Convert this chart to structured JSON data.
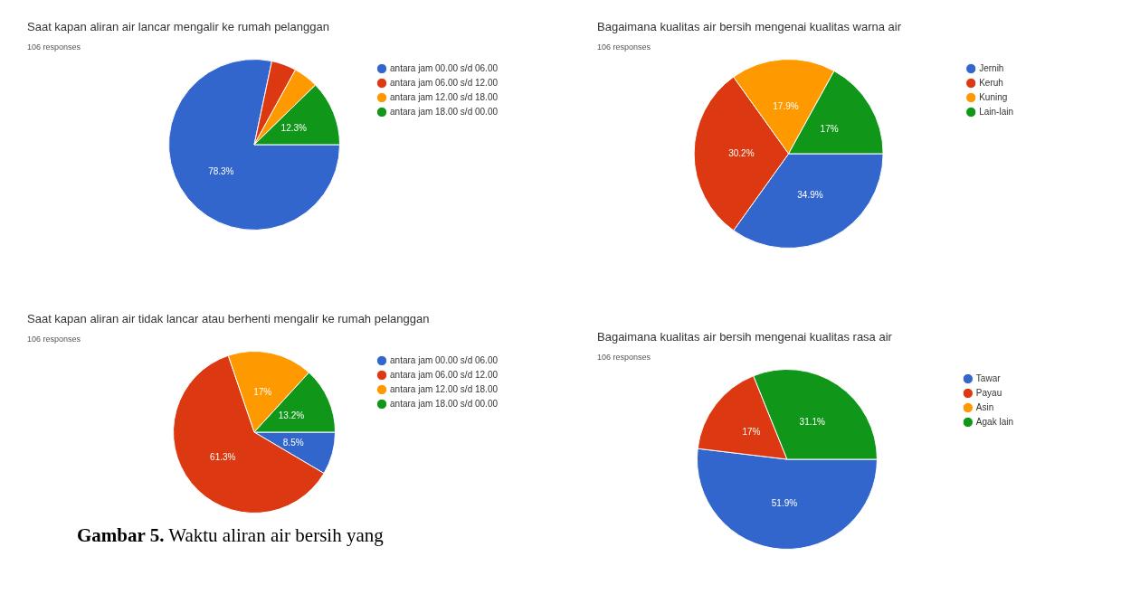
{
  "chart_data": [
    {
      "type": "pie",
      "title": "Saat kapan aliran air lancar mengalir ke rumah pelanggan",
      "subtitle": "106 responses",
      "categories": [
        "antara jam 00.00 s/d 06.00",
        "antara jam 06.00 s/d 12.00",
        "antara jam 12.00 s/d 18.00",
        "antara jam 18.00 s/d 00.00"
      ],
      "values": [
        78.3,
        4.7,
        4.7,
        12.3
      ],
      "value_labels": [
        "78.3%",
        null,
        null,
        "12.3%"
      ],
      "colors": [
        "#3366cc",
        "#dc3912",
        "#ff9900",
        "#109618"
      ],
      "legend": "right"
    },
    {
      "type": "pie",
      "title": "Bagaimana kualitas air bersih mengenai kualitas warna air",
      "subtitle": "106 responses",
      "categories": [
        "Jernih",
        "Keruh",
        "Kuning",
        "Lain-lain"
      ],
      "values": [
        34.9,
        30.2,
        17.9,
        17
      ],
      "value_labels": [
        "34.9%",
        "30.2%",
        "17.9%",
        "17%"
      ],
      "colors": [
        "#3366cc",
        "#dc3912",
        "#ff9900",
        "#109618"
      ],
      "legend": "right"
    },
    {
      "type": "pie",
      "title": "Saat kapan aliran air tidak lancar atau berhenti mengalir ke rumah pelanggan",
      "subtitle": "106 responses",
      "categories": [
        "antara jam 00.00 s/d 06.00",
        "antara jam 06.00 s/d 12.00",
        "antara jam 12.00 s/d 18.00",
        "antara jam 18.00 s/d 00.00"
      ],
      "values": [
        8.5,
        61.3,
        17,
        13.2
      ],
      "value_labels": [
        "8.5%",
        "61.3%",
        "17%",
        "13.2%"
      ],
      "colors": [
        "#3366cc",
        "#dc3912",
        "#ff9900",
        "#109618"
      ],
      "legend": "right",
      "annotations": [
        "Gambar 5. Waktu aliran air bersih yang"
      ]
    },
    {
      "type": "pie",
      "title": "Bagaimana kualitas air bersih mengenai kualitas rasa air",
      "subtitle": "106 responses",
      "categories": [
        "Tawar",
        "Payau",
        "Asin",
        "Agak lain"
      ],
      "values": [
        51.9,
        17,
        0,
        31.1
      ],
      "value_labels": [
        "51.9%",
        "17%",
        null,
        "31.1%"
      ],
      "colors": [
        "#3366cc",
        "#dc3912",
        "#ff9900",
        "#109618"
      ],
      "legend": "right"
    }
  ]
}
